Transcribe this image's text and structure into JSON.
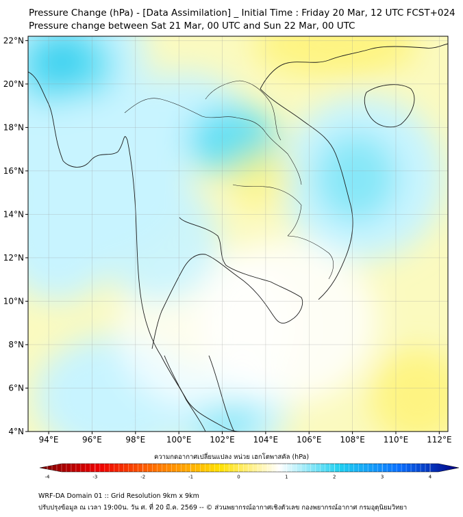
{
  "title": {
    "line1": "Pressure Change (hPa) - [Data Assimilation] _ Initial Time : Friday 20 Mar, 12 UTC FCST+024",
    "line2": "Pressure change between Sat 21 Mar, 00 UTC and Sun 22 Mar, 00 UTC"
  },
  "map": {
    "lon_labels": [
      "94°E",
      "96°E",
      "98°E",
      "100°E",
      "102°E",
      "104°E",
      "106°E",
      "108°E",
      "110°E",
      "112°E"
    ],
    "lat_labels": [
      "22°N",
      "20°N",
      "18°N",
      "16°N",
      "14°N",
      "12°N",
      "10°N",
      "8°N",
      "6°N",
      "4°N"
    ],
    "colors": {
      "negative_light": "#fbfabf",
      "negative_mid": "#fff26a",
      "positive_light": "#c8f4ff",
      "positive_mid": "#52dcf3",
      "positive_strong": "#0fc0ea",
      "neutral": "#ffffff"
    }
  },
  "colorbar": {
    "title": "ความกดอากาศเปลี่ยนแปลง หน่วย เฮกโตพาสคัล (hPa)",
    "tick_labels": [
      "-4",
      "-3",
      "-2",
      "-1",
      "0",
      "1",
      "2",
      "3",
      "4"
    ],
    "colors": [
      "#7a0000",
      "#ee0000",
      "#ff7a00",
      "#ffe000",
      "#ffffff",
      "#20d0f0",
      "#0a70ff",
      "#000080"
    ]
  },
  "footer": {
    "line1": "WRF-DA Domain 01 :: Grid Resolution 9km x 9km",
    "line2": "ปรับปรุงข้อมูล ณ เวลา 19:00น. วัน ศ. ที่ 20 มี.ค. 2569 -- © ส่วนพยากรณ์อากาศเชิงตัวเลข กองพยากรณ์อากาศ กรมอุตุนิยมวิทยา"
  }
}
